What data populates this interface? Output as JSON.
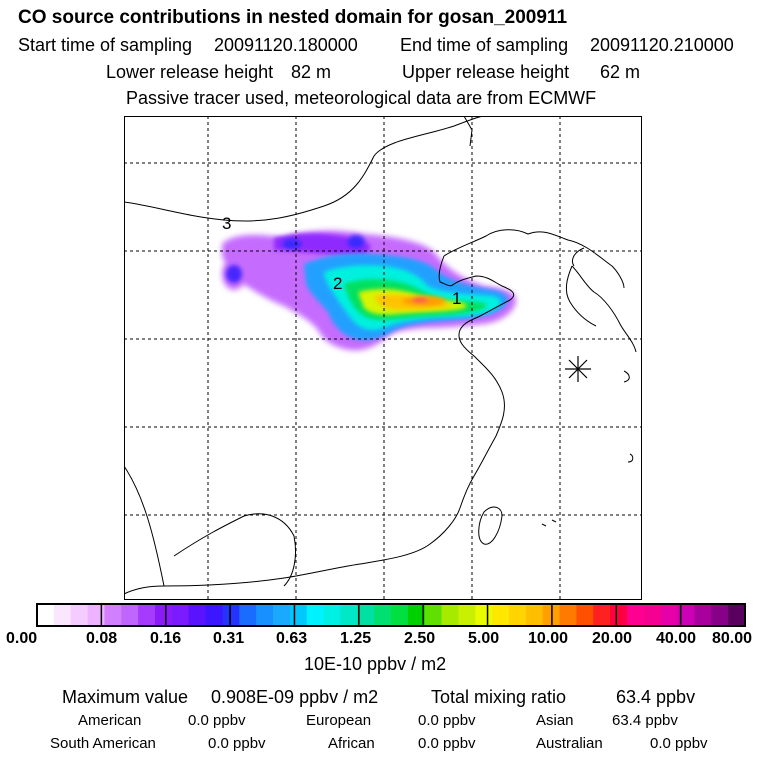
{
  "header": {
    "title": "CO  source contributions in nested domain for gosan_200911",
    "start_label": "Start time of sampling",
    "start_value": "20091120.180000",
    "end_label": "End time of sampling",
    "end_value": "20091120.210000",
    "lower_label": "Lower release height",
    "lower_value": "82 m",
    "upper_label": "Upper release height",
    "upper_value": "62 m",
    "note": "Passive tracer used, meteorological data are from ECMWF"
  },
  "map": {
    "labels": [
      "1",
      "2",
      "3"
    ],
    "receptor_marker": "asterisk-icon"
  },
  "colorbar": {
    "tick_labels": [
      "0.00",
      "0.08",
      "0.16",
      "0.31",
      "0.63",
      "1.25",
      "2.50",
      "5.00",
      "10.00",
      "20.00",
      "40.00",
      "80.00"
    ],
    "colors": [
      "#ffffff",
      "#fbe6ff",
      "#f5ccff",
      "#eeb3ff",
      "#d27fff",
      "#c066ff",
      "#a43bff",
      "#8b1cf8",
      "#7a1cff",
      "#5a12ff",
      "#3b16ff",
      "#2533ff",
      "#1a6bff",
      "#1890ff",
      "#1ba8ff",
      "#00c8ff",
      "#00f2ff",
      "#00f0e4",
      "#00e8c6",
      "#00e0a2",
      "#00e070",
      "#00e040",
      "#00d000",
      "#60e000",
      "#a6ea00",
      "#c8f000",
      "#eafa00",
      "#ffe800",
      "#ffd400",
      "#ffbe00",
      "#ffa000",
      "#ff7a00",
      "#ff5000",
      "#ff2020",
      "#ff0040",
      "#ff0090",
      "#f50090",
      "#e600a8",
      "#cc00b4",
      "#a8009c",
      "#860088",
      "#5a005e"
    ],
    "unit": "10E-10 ppbv / m2"
  },
  "footer": {
    "max_label": "Maximum value",
    "max_value": "0.908E-09 ppbv / m2",
    "total_label": "Total mixing ratio",
    "total_value": "63.4 ppbv",
    "regions": [
      {
        "name": "American",
        "value": "0.0 ppbv"
      },
      {
        "name": "European",
        "value": "0.0 ppbv"
      },
      {
        "name": "Asian",
        "value": "63.4 ppbv"
      },
      {
        "name": "South American",
        "value": "0.0 ppbv"
      },
      {
        "name": "African",
        "value": "0.0 ppbv"
      },
      {
        "name": "Australian",
        "value": "0.0 ppbv"
      }
    ]
  }
}
